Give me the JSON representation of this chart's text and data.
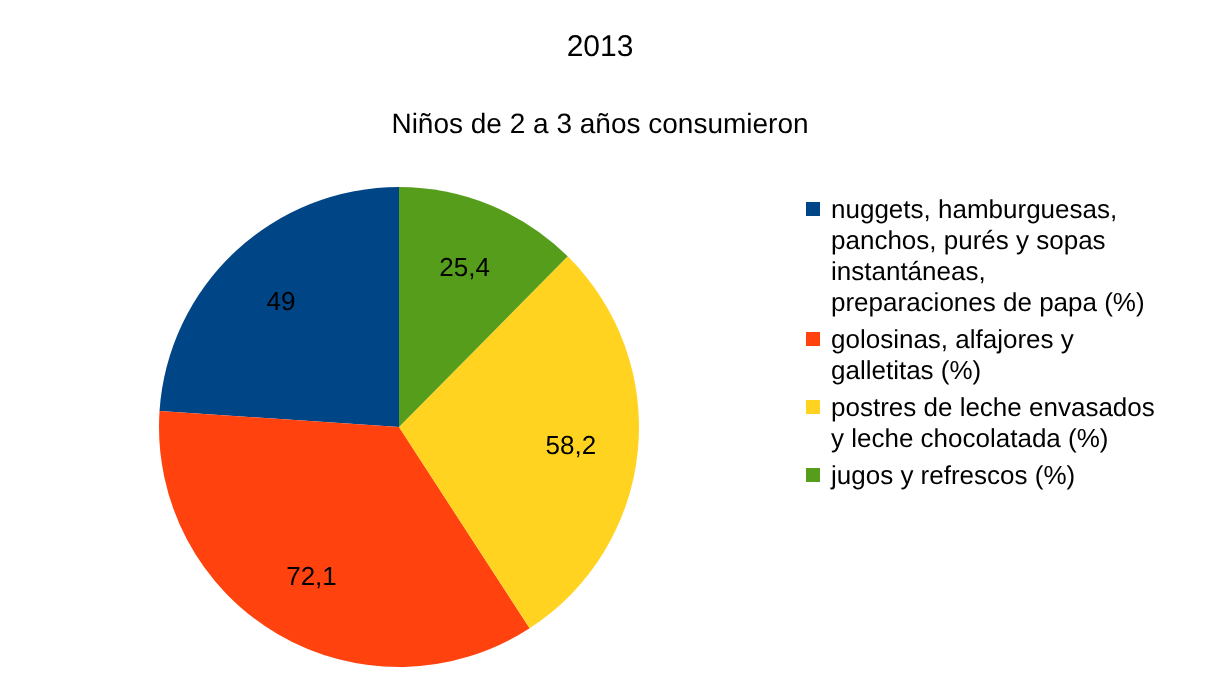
{
  "chart_data": {
    "type": "pie",
    "title": "2013",
    "subtitle": "Niños de 2 a 3 años consumieron",
    "categories": [
      "nuggets, hamburguesas, panchos, purés y sopas instantáneas, preparaciones de papa (%)",
      "golosinas, alfajores y galletitas (%)",
      "postres de leche envasados y leche chocolatada (%)",
      "jugos y refrescos (%)"
    ],
    "values": [
      49,
      72.1,
      58.2,
      25.4
    ],
    "colors": [
      "#004586",
      "#ff420e",
      "#ffd320",
      "#579d1c"
    ],
    "value_labels": [
      "49",
      "72,1",
      "58,2",
      "25,4"
    ],
    "legend": "right"
  }
}
